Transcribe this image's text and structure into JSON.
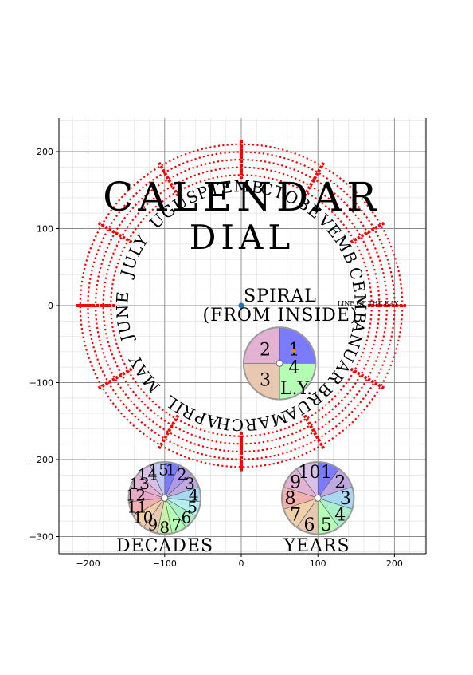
{
  "chart_data": {
    "type": "scatter",
    "title_lines": [
      "CALENDAR",
      "DIAL"
    ],
    "xlim": [
      -240,
      243
    ],
    "ylim": [
      -323,
      243
    ],
    "x_ticks": [
      -200,
      -100,
      0,
      100,
      200
    ],
    "y_ticks": [
      200,
      100,
      0,
      -100,
      -200,
      -300
    ],
    "x_tick_labels": [
      "−200",
      "−100",
      "0",
      "100",
      "200"
    ],
    "y_tick_labels": [
      "200",
      "100",
      "0",
      "−100",
      "−200",
      "−300"
    ],
    "grid": true,
    "minor_grid": true,
    "ring_color": "#ff0000",
    "ring_radii": [
      170,
      180,
      190,
      200,
      210
    ],
    "months": [
      "JANUARY",
      "FEBRUARY",
      "MARCH",
      "APRIL",
      "MAY",
      "JUNE",
      "JULY",
      "AUGUST",
      "SEPTEMBER",
      "OCTOBER",
      "NOVEMBER",
      "DECEMBER"
    ],
    "spiral_label_lines": [
      "SPIRAL",
      "(FROM INSIDE)"
    ],
    "ring_mark_label": "LINE OF THE DAY",
    "origin_point": {
      "x": 0,
      "y": 0
    },
    "leap_year_dial": {
      "label": "L.Y.",
      "center": [
        50,
        -75
      ],
      "radius": 47,
      "numbers": [
        "1",
        "2",
        "3",
        "4"
      ],
      "sector_colors": [
        "#7b7bff",
        "#e3b2d2",
        "#e8c8b0",
        "#b4ffb4"
      ]
    },
    "decades_dial": {
      "label": "DECADES",
      "center": [
        -100,
        -250
      ],
      "radius": 47,
      "numbers": [
        "1",
        "2",
        "3",
        "4",
        "5",
        "6",
        "7",
        "8",
        "9",
        "10",
        "11",
        "12",
        "13",
        "14",
        "15"
      ]
    },
    "years_dial": {
      "label": "YEARS",
      "center": [
        100,
        -250
      ],
      "radius": 47,
      "numbers": [
        "1",
        "2",
        "3",
        "4",
        "5",
        "6",
        "7",
        "8",
        "9",
        "10"
      ]
    }
  }
}
